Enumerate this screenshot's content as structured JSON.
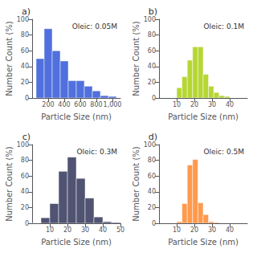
{
  "chart_data": [
    {
      "type": "histogram",
      "title": "a)",
      "annotation": "Oleic: 0.05M",
      "xlabel": "Particle Size (nm)",
      "ylabel": "Number Count (%)",
      "xlim": [
        0,
        1100
      ],
      "ylim": [
        0,
        100
      ],
      "xticks": [
        200,
        400,
        600,
        800,
        1000
      ],
      "yticks": [
        0,
        20,
        40,
        60,
        80,
        100
      ],
      "bins": [
        50,
        150,
        250,
        350,
        450,
        550,
        650,
        750,
        850,
        950,
        1050
      ],
      "values": [
        50,
        88,
        60,
        47,
        22,
        22,
        15,
        9,
        3,
        2
      ],
      "grid": false
    },
    {
      "type": "histogram",
      "title": "b)",
      "annotation": "Oleic: 0.1M",
      "xlabel": "Particle Size (nm)",
      "ylabel": "Number Count (%)",
      "xlim": [
        0,
        50
      ],
      "ylim": [
        0,
        100
      ],
      "xticks": [
        10,
        20,
        30,
        40
      ],
      "yticks": [
        0,
        20,
        40,
        60,
        80,
        100
      ],
      "bins": [
        10,
        13,
        16,
        19,
        22,
        25,
        28,
        31,
        34,
        37,
        40
      ],
      "values": [
        13,
        27,
        48,
        65,
        65,
        30,
        15,
        7,
        3,
        2
      ],
      "grid": false
    },
    {
      "type": "histogram",
      "title": "c)",
      "annotation": "Oleic: 0.3M",
      "xlabel": "Particle Size (nm)",
      "ylabel": "Number Count (%)",
      "xlim": [
        0,
        50
      ],
      "ylim": [
        0,
        100
      ],
      "xticks": [
        10,
        20,
        30,
        40,
        50
      ],
      "yticks": [
        0,
        20,
        40,
        60,
        80,
        100
      ],
      "bins": [
        0,
        5,
        10,
        15,
        20,
        25,
        30,
        35,
        40,
        45,
        50
      ],
      "values": [
        0,
        7,
        25,
        66,
        84,
        57,
        32,
        8,
        2,
        1
      ],
      "grid": false
    },
    {
      "type": "histogram",
      "title": "d)",
      "annotation": "Oleic: 0.5M",
      "xlabel": "Particle Size (nm)",
      "ylabel": "Number Count (%)",
      "xlim": [
        0,
        50
      ],
      "ylim": [
        0,
        100
      ],
      "xticks": [
        10,
        20,
        30,
        40
      ],
      "yticks": [
        0,
        20,
        40,
        60,
        80,
        100
      ],
      "bins": [
        10,
        13,
        16,
        19,
        22,
        25,
        28,
        31,
        34,
        37
      ],
      "values": [
        2,
        25,
        74,
        81,
        26,
        11,
        2,
        1,
        0
      ],
      "grid": false
    }
  ]
}
